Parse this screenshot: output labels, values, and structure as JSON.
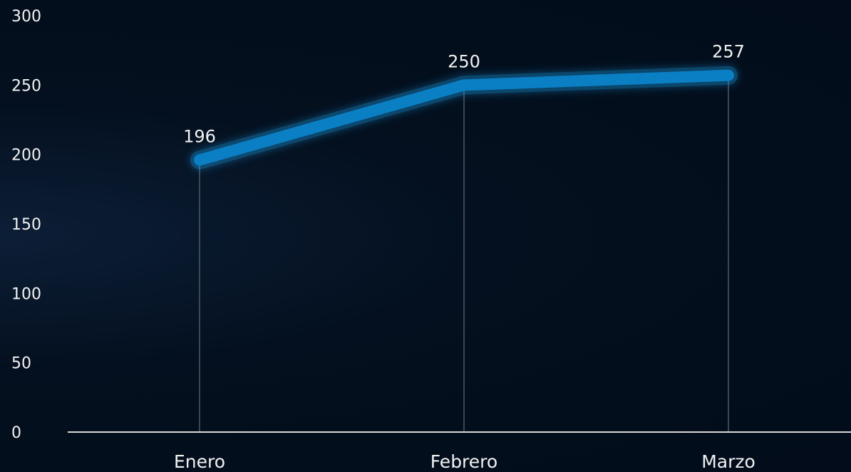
{
  "chart_data": {
    "type": "line",
    "categories": [
      "Enero",
      "Febrero",
      "Marzo"
    ],
    "series": [
      {
        "values": [
          196,
          250,
          257
        ]
      }
    ],
    "data_labels": [
      "196",
      "250",
      "257"
    ],
    "y_ticks": [
      {
        "value": 0,
        "label": "0"
      },
      {
        "value": 50,
        "label": "50"
      },
      {
        "value": 100,
        "label": "100"
      },
      {
        "value": 150,
        "label": "150"
      },
      {
        "value": 200,
        "label": "200"
      },
      {
        "value": 250,
        "label": "250"
      },
      {
        "value": 300,
        "label": "300"
      }
    ],
    "ylim": [
      0,
      300
    ],
    "grid": false,
    "legend": "none",
    "colors": {
      "line": "#0a7fc4",
      "glow": "#1fb0ff",
      "drop_line": "#5a6470",
      "axis": "#d9d9d9",
      "text": "#f2f2f2"
    }
  }
}
